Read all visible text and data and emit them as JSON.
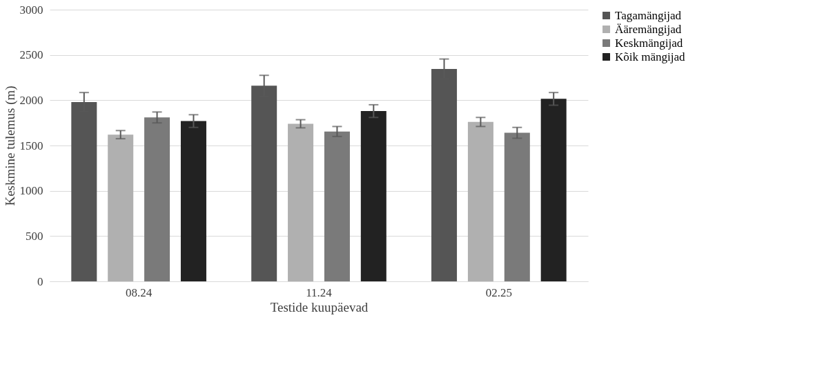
{
  "chart_data": {
    "type": "bar",
    "xlabel": "Testide kuupäevad",
    "ylabel": "Keskmine tulemus (m)",
    "categories": [
      "08.24",
      "11.24",
      "02.25"
    ],
    "series": [
      {
        "name": "Tagamängijad",
        "color": "#555555",
        "values": [
          1980,
          2160,
          2345
        ],
        "errors": [
          105,
          115,
          110
        ]
      },
      {
        "name": "Ääremängijad",
        "color": "#b0b0b0",
        "values": [
          1620,
          1740,
          1760
        ],
        "errors": [
          45,
          45,
          50
        ]
      },
      {
        "name": "Keskmängijad",
        "color": "#7a7a7a",
        "values": [
          1810,
          1655,
          1640
        ],
        "errors": [
          60,
          55,
          60
        ]
      },
      {
        "name": "Kõik mängijad",
        "color": "#222222",
        "values": [
          1770,
          1880,
          2015
        ],
        "errors": [
          70,
          70,
          70
        ]
      }
    ],
    "ylim": [
      0,
      3000
    ],
    "yticks": [
      0,
      500,
      1000,
      1500,
      2000,
      2500,
      3000
    ],
    "grid": "y",
    "legend": "right"
  }
}
